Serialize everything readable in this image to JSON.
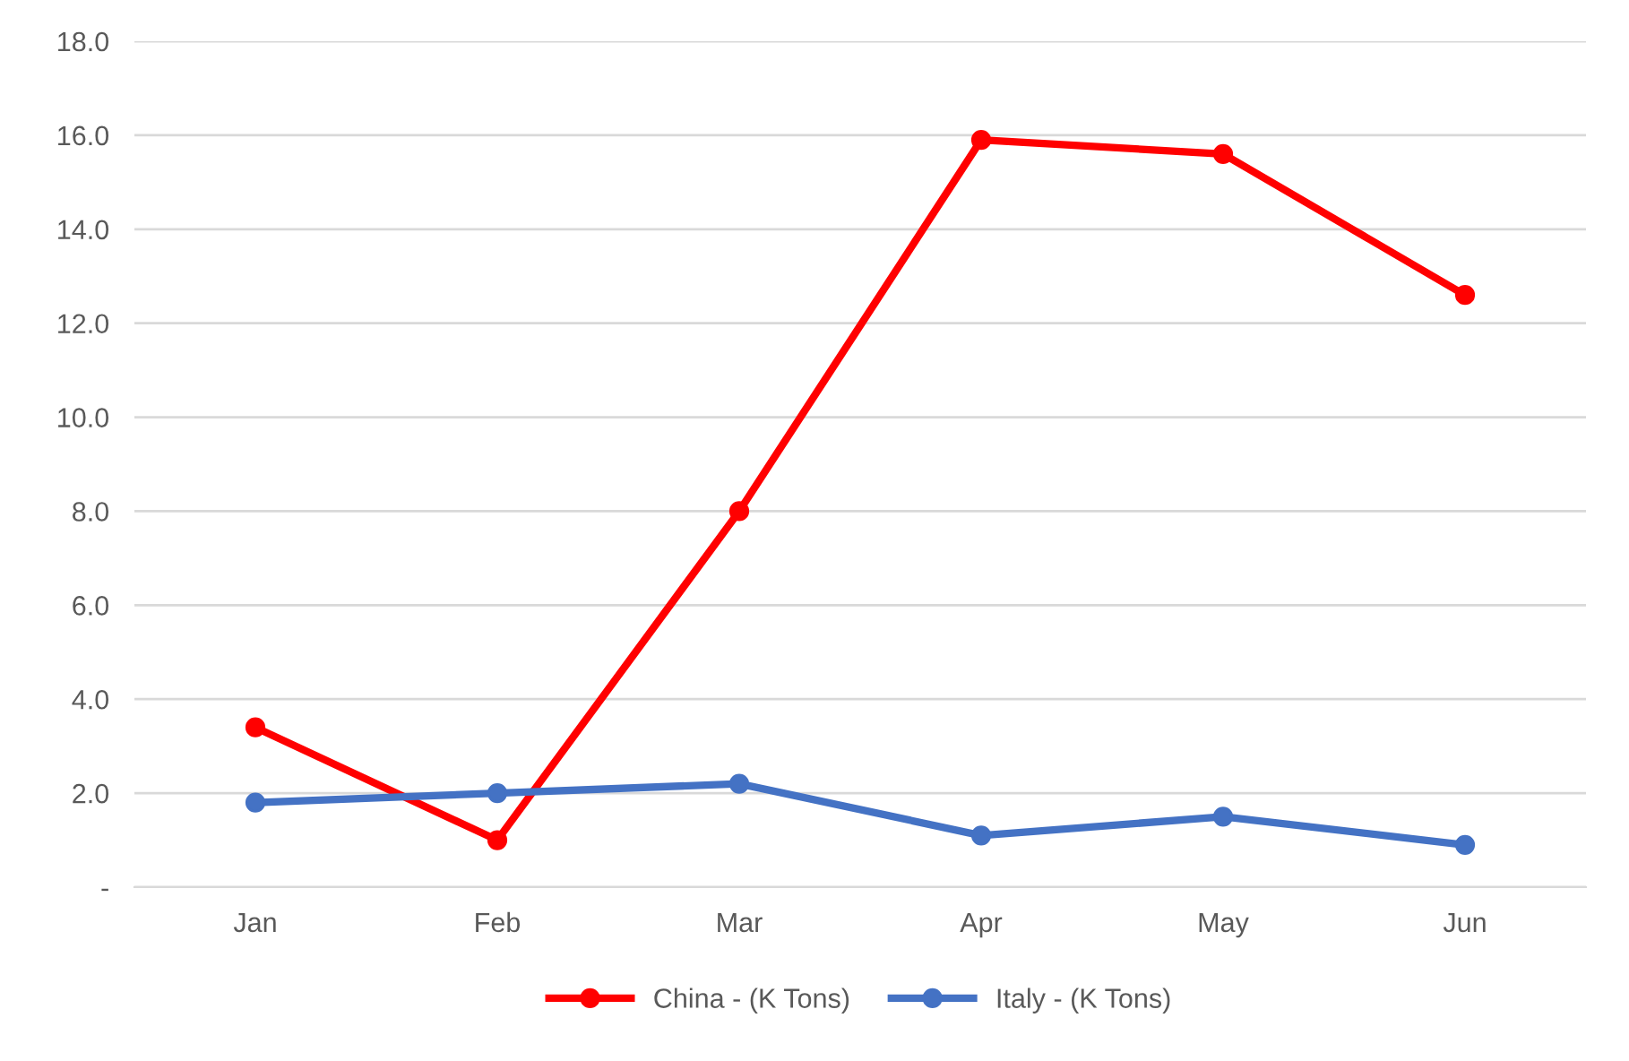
{
  "chart_data": {
    "type": "line",
    "categories": [
      "Jan",
      "Feb",
      "Mar",
      "Apr",
      "May",
      "Jun"
    ],
    "series": [
      {
        "name": "China - (K Tons)",
        "color": "#ff0000",
        "values": [
          3.4,
          1.0,
          8.0,
          15.9,
          15.6,
          12.6
        ]
      },
      {
        "name": "Italy - (K Tons)",
        "color": "#4472c4",
        "values": [
          1.8,
          2.0,
          2.2,
          1.1,
          1.5,
          0.9
        ]
      }
    ],
    "ylim": [
      0,
      18
    ],
    "yticks": [
      {
        "value": 0,
        "label": "-"
      },
      {
        "value": 2,
        "label": "2.0"
      },
      {
        "value": 4,
        "label": "4.0"
      },
      {
        "value": 6,
        "label": "6.0"
      },
      {
        "value": 8,
        "label": "8.0"
      },
      {
        "value": 10,
        "label": "10.0"
      },
      {
        "value": 12,
        "label": "12.0"
      },
      {
        "value": 14,
        "label": "14.0"
      },
      {
        "value": 16,
        "label": "16.0"
      },
      {
        "value": 18,
        "label": "18.0"
      }
    ],
    "grid": "y",
    "legend": "bottom",
    "marker": "circle",
    "line_style": "solid"
  }
}
